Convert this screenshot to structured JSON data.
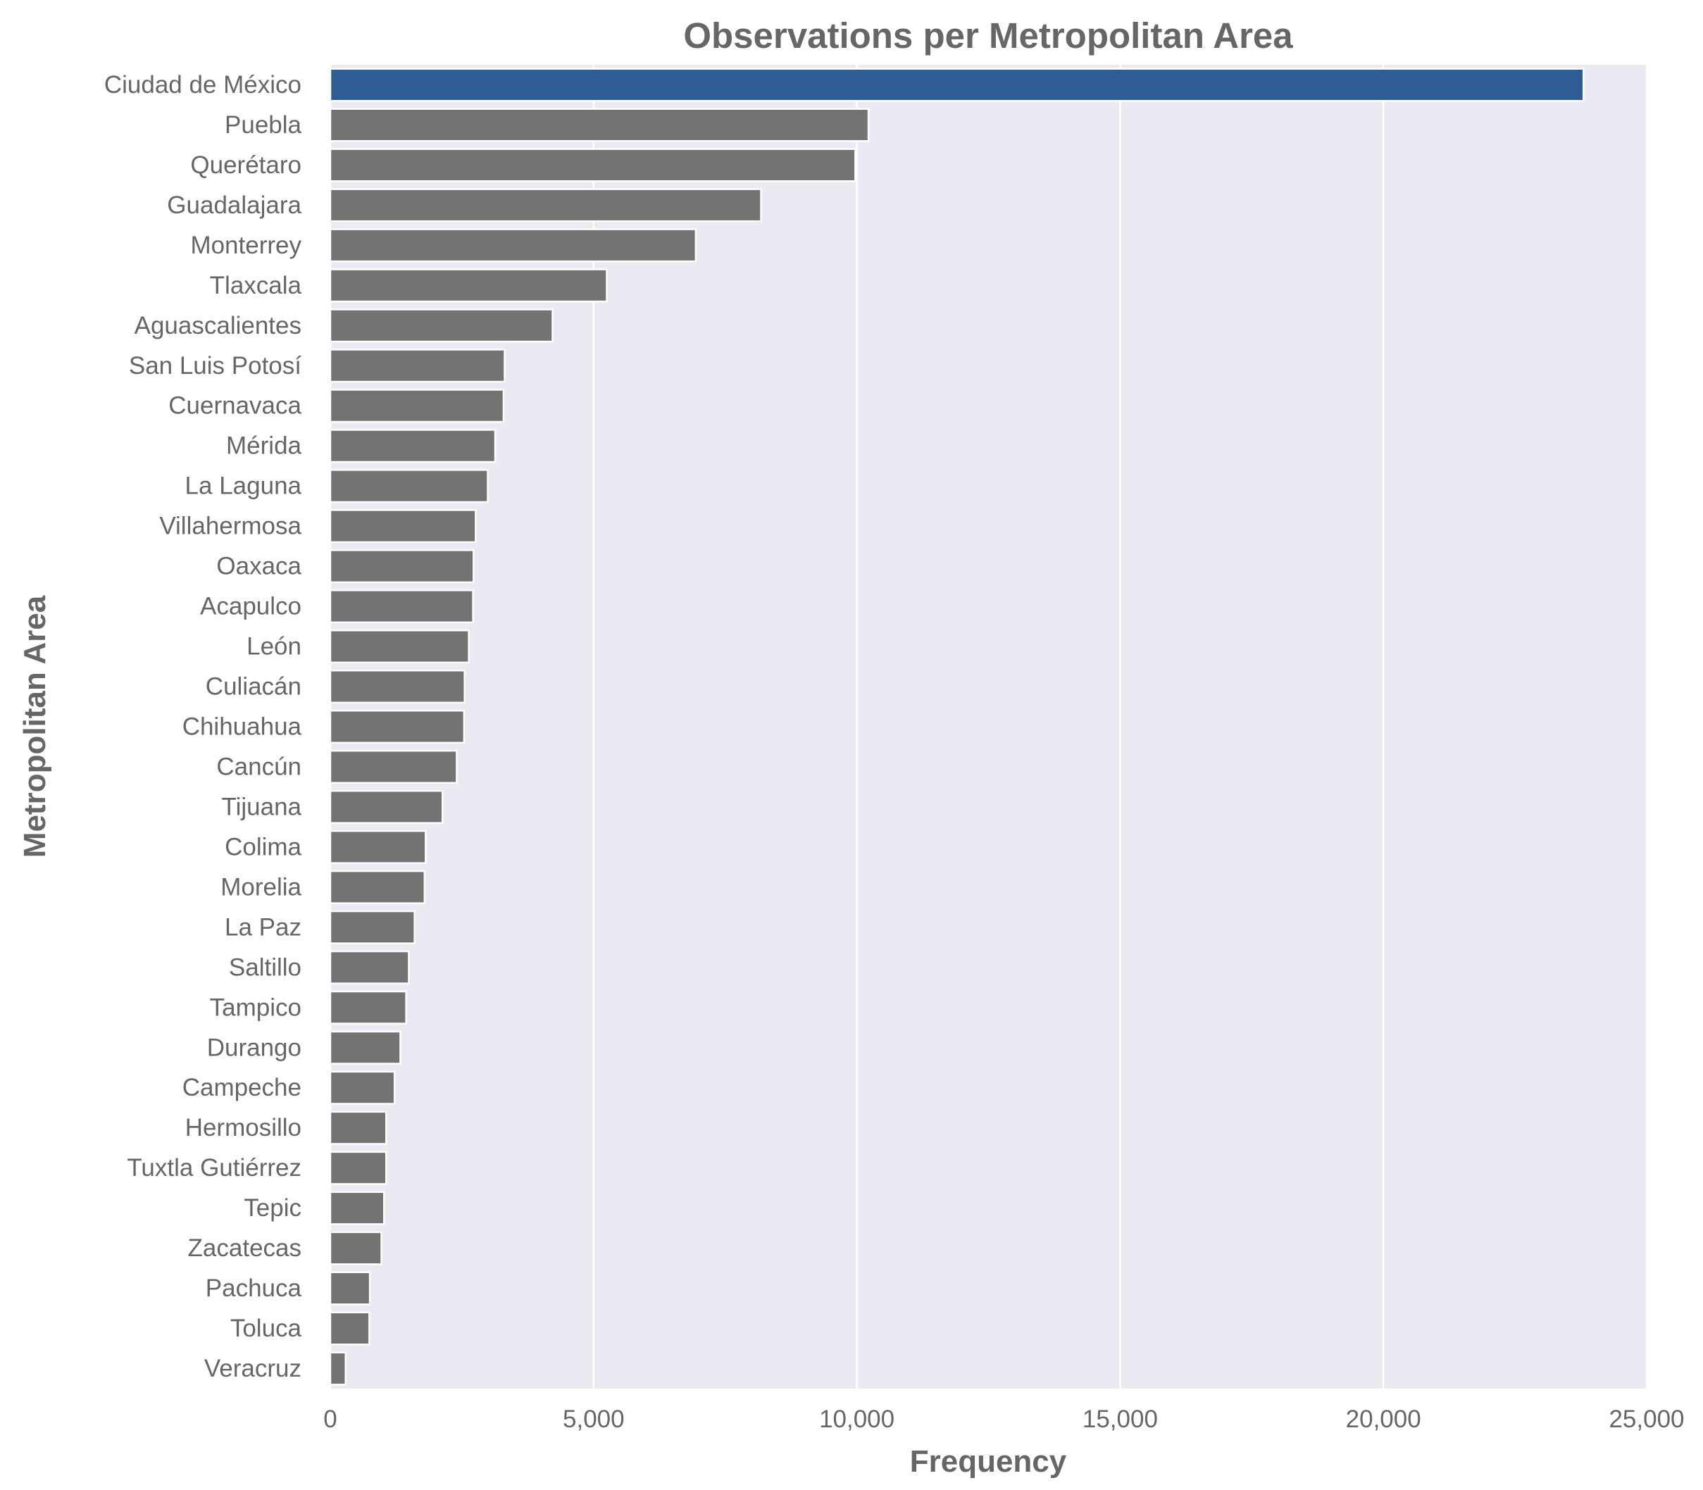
{
  "chart_data": {
    "type": "bar",
    "orientation": "horizontal",
    "title": "Observations per Metropolitan Area",
    "xlabel": "Frequency",
    "ylabel": "Metropolitan Area",
    "xlim": [
      0,
      25000
    ],
    "xticks": [
      0,
      5000,
      10000,
      15000,
      20000,
      25000
    ],
    "xtick_labels": [
      "0",
      "5,000",
      "10,000",
      "15,000",
      "20,000",
      "25,000"
    ],
    "grid": "vertical",
    "categories": [
      "Ciudad de México",
      "Puebla",
      "Querétaro",
      "Guadalajara",
      "Monterrey",
      "Tlaxcala",
      "Aguascalientes",
      "San Luis Potosí",
      "Cuernavaca",
      "Mérida",
      "La Laguna",
      "Villahermosa",
      "Oaxaca",
      "Acapulco",
      "León",
      "Culiacán",
      "Chihuahua",
      "Cancún",
      "Tijuana",
      "Colima",
      "Morelia",
      "La Paz",
      "Saltillo",
      "Tampico",
      "Durango",
      "Campeche",
      "Hermosillo",
      "Tuxtla Gutiérrez",
      "Tepic",
      "Zacatecas",
      "Pachuca",
      "Toluca",
      "Veracruz"
    ],
    "values": [
      23800,
      10220,
      9970,
      8180,
      6940,
      5250,
      4220,
      3310,
      3290,
      3130,
      2990,
      2760,
      2720,
      2710,
      2630,
      2550,
      2540,
      2400,
      2130,
      1810,
      1790,
      1600,
      1490,
      1440,
      1330,
      1220,
      1060,
      1060,
      1020,
      970,
      750,
      740,
      290
    ],
    "highlight_index": 0,
    "colors": {
      "highlight": "#2e5d94",
      "bar": "#737373",
      "plot_background": "#eaeaf2",
      "grid": "#ffffff",
      "text": "#666666"
    }
  }
}
